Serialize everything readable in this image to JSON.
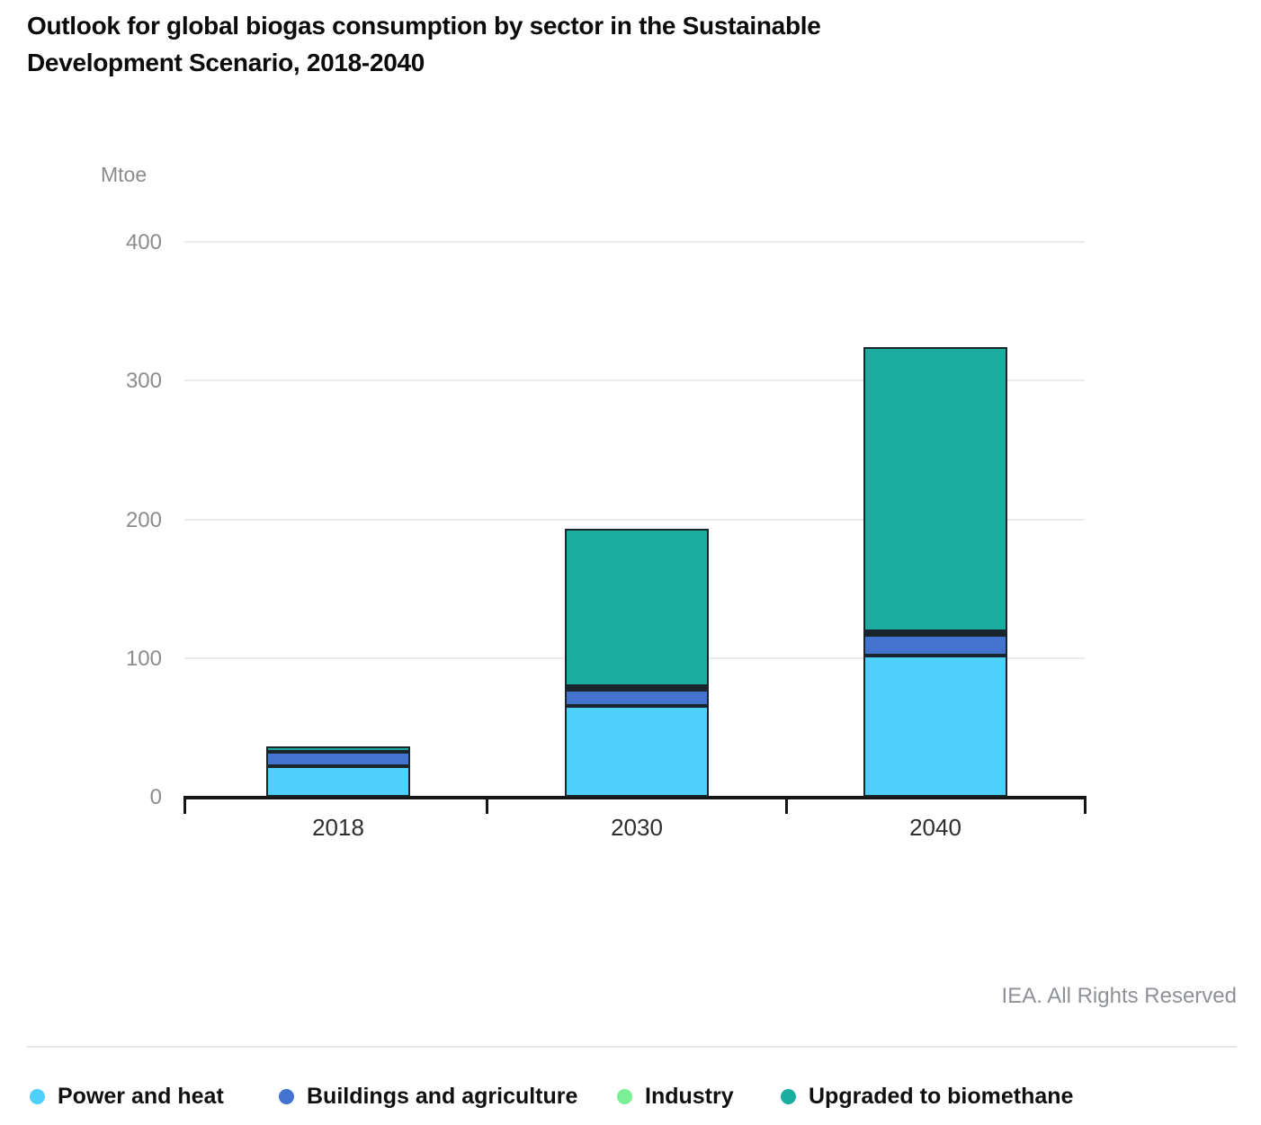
{
  "page": {
    "title": "Outlook for global biogas consumption by sector in the Sustainable\nDevelopment Scenario, 2018-2040",
    "credit": "IEA. All Rights Reserved"
  },
  "chart_data": {
    "type": "bar",
    "stacked": true,
    "title": "Outlook for global biogas consumption by sector in the Sustainable Development Scenario, 2018-2040",
    "ylabel": "Mtoe",
    "xlabel": "",
    "categories": [
      "2018",
      "2030",
      "2040"
    ],
    "series": [
      {
        "name": "Power and heat",
        "color": "#4fd0fb",
        "values": [
          22,
          66,
          102
        ]
      },
      {
        "name": "Buildings and agriculture",
        "color": "#4173cf",
        "values": [
          10.5,
          11.5,
          15
        ]
      },
      {
        "name": "Industry",
        "color": "#7bee96",
        "values": [
          0,
          2,
          2.5
        ]
      },
      {
        "name": "Upgraded to biomethane",
        "color": "#1caca0",
        "values": [
          3.5,
          113.5,
          205
        ]
      }
    ],
    "yticks": [
      0,
      100,
      200,
      300,
      400
    ],
    "ylim": [
      0,
      400
    ],
    "grid": true,
    "legend_position": "bottom"
  }
}
